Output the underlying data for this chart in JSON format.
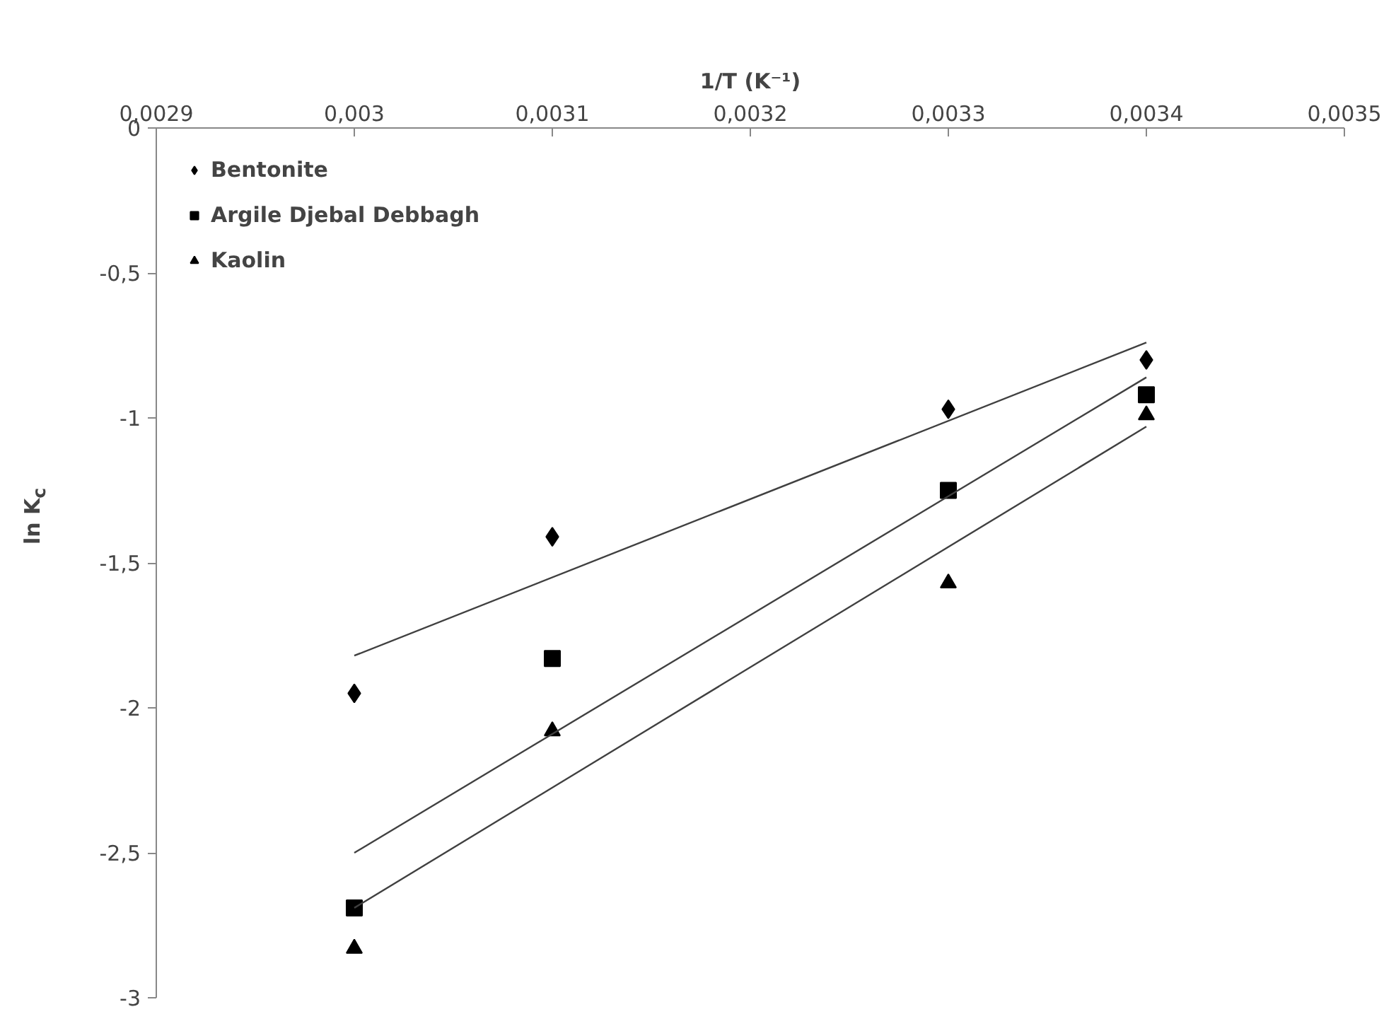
{
  "chart_data": {
    "type": "scatter",
    "xlabel": "1/T (K⁻¹)",
    "ylabel": "ln K$_{c}$",
    "xlim": [
      0.0029,
      0.0035
    ],
    "ylim": [
      -3,
      0
    ],
    "xticks": [
      {
        "value": 0.0029,
        "label": "0,0029"
      },
      {
        "value": 0.003,
        "label": "0,003"
      },
      {
        "value": 0.0031,
        "label": "0,0031"
      },
      {
        "value": 0.0032,
        "label": "0,0032"
      },
      {
        "value": 0.0033,
        "label": "0,0033"
      },
      {
        "value": 0.0034,
        "label": "0,0034"
      },
      {
        "value": 0.0035,
        "label": "0,0035"
      }
    ],
    "yticks": [
      0,
      {
        "value": -0.5,
        "label": "-0,5"
      },
      -1,
      {
        "value": -1.5,
        "label": "-1,5"
      },
      -2,
      {
        "value": -2.5,
        "label": "-2,5"
      },
      -3
    ],
    "grid": false,
    "legend": "top left",
    "series": [
      {
        "name": "Bentonite",
        "color": "#000000",
        "marker": "diamond",
        "x": [
          0.003,
          0.0031,
          0.0033,
          0.0034
        ],
        "values": [
          -1.95,
          -1.41,
          -0.97,
          -0.8
        ]
      },
      {
        "name": "Argile Djebal Debbagh",
        "color": "#000000",
        "marker": "square",
        "x": [
          0.003,
          0.0031,
          0.0033,
          0.0034
        ],
        "values": [
          -2.69,
          -1.83,
          -1.25,
          -0.92
        ]
      },
      {
        "name": "Kaolin",
        "color": "#000000",
        "marker": "triangle",
        "x": [
          0.003,
          0.0031,
          0.0033,
          0.0034
        ],
        "values": [
          -2.83,
          -2.08,
          -1.57,
          -0.99
        ]
      },
      {
        "type": "line",
        "color": "#404040",
        "x": [
          0.003,
          0.0034
        ],
        "values": [
          -1.82,
          -0.74
        ]
      },
      {
        "type": "line",
        "color": "#404040",
        "x": [
          0.003,
          0.0034
        ],
        "values": [
          -2.5,
          -0.86
        ]
      },
      {
        "type": "line",
        "color": "#404040",
        "x": [
          0.003,
          0.0034
        ],
        "values": [
          -2.69,
          -1.03
        ]
      }
    ]
  }
}
